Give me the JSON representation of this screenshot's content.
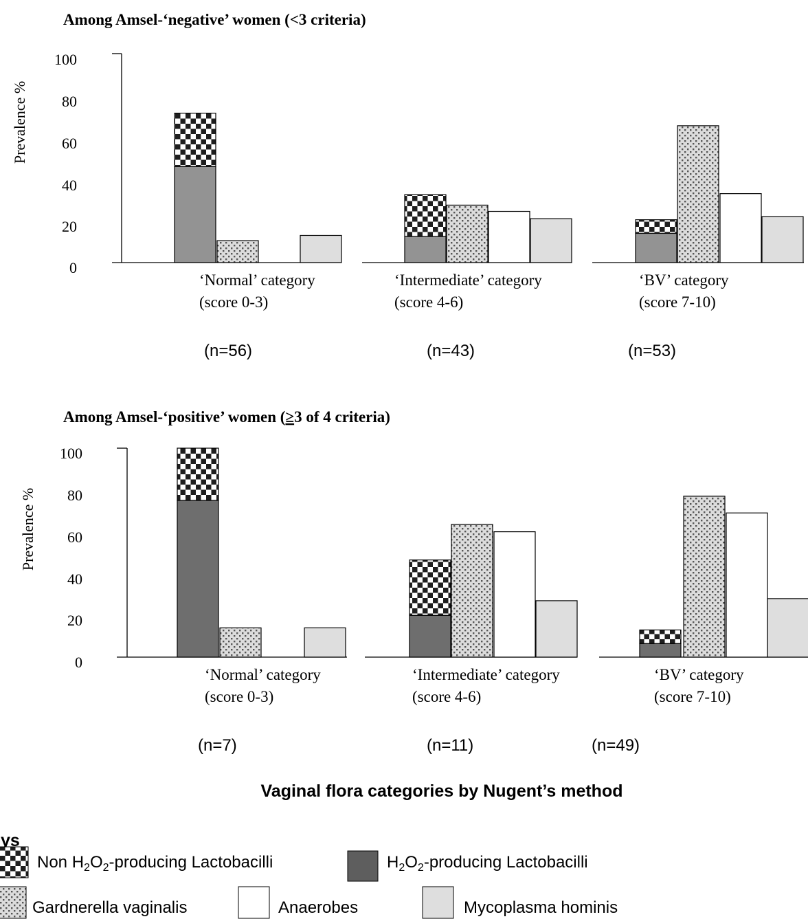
{
  "chart_data": [
    {
      "type": "bar",
      "title": "Among Amsel-‘negative’ women (<3 criteria)",
      "ylabel": "Prevalence %",
      "ylim": [
        0,
        100
      ],
      "yticks": [
        "0",
        "20",
        "40",
        "60",
        "80",
        "100"
      ],
      "groups": [
        {
          "label_line1": "‘Normal’ category",
          "label_line2": "(score 0-3)",
          "n_label": "(n=56)"
        },
        {
          "label_line1": "‘Intermediate’ category",
          "label_line2": "(score 4-6)",
          "n_label": "(n=43)"
        },
        {
          "label_line1": "‘BV’ category",
          "label_line2": "(score 7-10)",
          "n_label": "(n=53)"
        }
      ],
      "series": [
        {
          "key": "h2o2",
          "values": [
            46,
            12.5,
            14
          ]
        },
        {
          "key": "non_h2o2",
          "values": [
            25.5,
            20,
            6.5
          ]
        },
        {
          "key": "gardnerella",
          "values": [
            10.5,
            27.5,
            65.5
          ]
        },
        {
          "key": "anaerobes",
          "values": [
            0,
            24.5,
            33
          ]
        },
        {
          "key": "mycoplasma",
          "values": [
            13,
            21,
            22
          ]
        }
      ]
    },
    {
      "type": "bar",
      "title_prefix": "Among Amsel-‘positive’ women (",
      "title_sym": "≥",
      "title_suffix": "3 of 4 criteria)",
      "ylabel": "Prevalence %",
      "ylim": [
        0,
        100
      ],
      "yticks": [
        "0",
        "20",
        "40",
        "60",
        "80",
        "100"
      ],
      "groups": [
        {
          "label_line1": "‘Normal’ category",
          "label_line2": "(score 0-3)",
          "n_label": "(n=7)"
        },
        {
          "label_line1": "‘Intermediate’ category",
          "label_line2": "(score 4-6)",
          "n_label": "(n=11)"
        },
        {
          "label_line1": "‘BV’ category",
          "label_line2": "(score 7-10)",
          "n_label": "(n=49)"
        }
      ],
      "series": [
        {
          "key": "h2o2",
          "values": [
            75,
            20,
            6.5
          ]
        },
        {
          "key": "non_h2o2",
          "values": [
            25,
            26.5,
            6.5
          ]
        },
        {
          "key": "gardnerella",
          "values": [
            14,
            63.5,
            77
          ]
        },
        {
          "key": "anaerobes",
          "values": [
            0,
            60,
            69
          ]
        },
        {
          "key": "mycoplasma",
          "values": [
            14,
            27,
            28
          ]
        }
      ]
    }
  ],
  "xlabel": "Vaginal flora categories by Nugent’s method",
  "legend": {
    "title": "Keys",
    "items": [
      {
        "key": "non_h2o2",
        "pre": "Non H",
        "sub1": "2",
        "mid": "O",
        "sub2": "2",
        "post": "-producing Lactobacilli"
      },
      {
        "key": "h2o2",
        "pre": "H",
        "sub1": "2",
        "mid": "O",
        "sub2": "2",
        "post": "-producing Lactobacilli"
      },
      {
        "key": "gardnerella",
        "pre": "Gardnerella vaginalis"
      },
      {
        "key": "anaerobes",
        "pre": "Anaerobes"
      },
      {
        "key": "mycoplasma",
        "pre": "Mycoplasma hominis"
      }
    ]
  },
  "colors": {
    "h2o2_panel1": "#939393",
    "h2o2_panel2": "#6e6e6e",
    "mycoplasma": "#dedede",
    "anaerobes": "#ffffff",
    "checker_dark": "#1e1e1e",
    "stipple_bg": "#dcdcdc",
    "stipple_dot": "#555555"
  }
}
